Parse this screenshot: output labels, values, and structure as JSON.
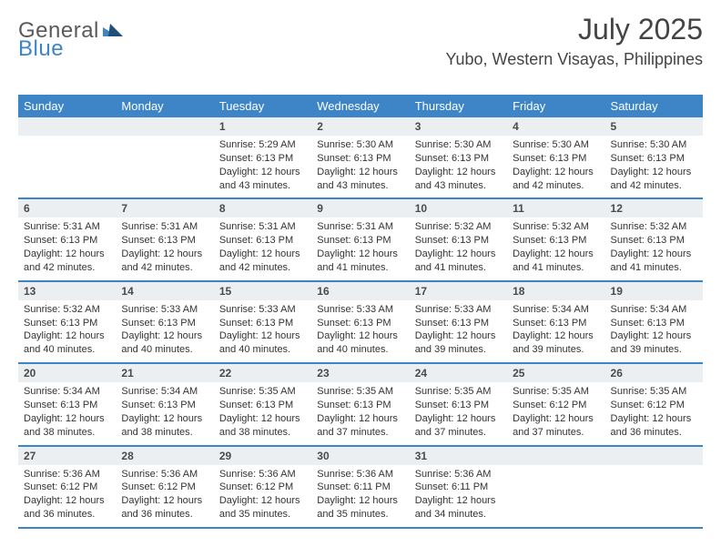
{
  "brand": {
    "part1": "General",
    "part2": "Blue"
  },
  "header": {
    "month_title": "July 2025",
    "location": "Yubo, Western Visayas, Philippines"
  },
  "colors": {
    "accent": "#3d85c6",
    "dow_text": "#ffffff",
    "daynum_bg": "#eceff1",
    "text": "#333333",
    "background": "#ffffff"
  },
  "calendar": {
    "days_of_week": [
      "Sunday",
      "Monday",
      "Tuesday",
      "Wednesday",
      "Thursday",
      "Friday",
      "Saturday"
    ],
    "weeks": [
      [
        null,
        null,
        {
          "n": "1",
          "sunrise": "Sunrise: 5:29 AM",
          "sunset": "Sunset: 6:13 PM",
          "day1": "Daylight: 12 hours",
          "day2": "and 43 minutes."
        },
        {
          "n": "2",
          "sunrise": "Sunrise: 5:30 AM",
          "sunset": "Sunset: 6:13 PM",
          "day1": "Daylight: 12 hours",
          "day2": "and 43 minutes."
        },
        {
          "n": "3",
          "sunrise": "Sunrise: 5:30 AM",
          "sunset": "Sunset: 6:13 PM",
          "day1": "Daylight: 12 hours",
          "day2": "and 43 minutes."
        },
        {
          "n": "4",
          "sunrise": "Sunrise: 5:30 AM",
          "sunset": "Sunset: 6:13 PM",
          "day1": "Daylight: 12 hours",
          "day2": "and 42 minutes."
        },
        {
          "n": "5",
          "sunrise": "Sunrise: 5:30 AM",
          "sunset": "Sunset: 6:13 PM",
          "day1": "Daylight: 12 hours",
          "day2": "and 42 minutes."
        }
      ],
      [
        {
          "n": "6",
          "sunrise": "Sunrise: 5:31 AM",
          "sunset": "Sunset: 6:13 PM",
          "day1": "Daylight: 12 hours",
          "day2": "and 42 minutes."
        },
        {
          "n": "7",
          "sunrise": "Sunrise: 5:31 AM",
          "sunset": "Sunset: 6:13 PM",
          "day1": "Daylight: 12 hours",
          "day2": "and 42 minutes."
        },
        {
          "n": "8",
          "sunrise": "Sunrise: 5:31 AM",
          "sunset": "Sunset: 6:13 PM",
          "day1": "Daylight: 12 hours",
          "day2": "and 42 minutes."
        },
        {
          "n": "9",
          "sunrise": "Sunrise: 5:31 AM",
          "sunset": "Sunset: 6:13 PM",
          "day1": "Daylight: 12 hours",
          "day2": "and 41 minutes."
        },
        {
          "n": "10",
          "sunrise": "Sunrise: 5:32 AM",
          "sunset": "Sunset: 6:13 PM",
          "day1": "Daylight: 12 hours",
          "day2": "and 41 minutes."
        },
        {
          "n": "11",
          "sunrise": "Sunrise: 5:32 AM",
          "sunset": "Sunset: 6:13 PM",
          "day1": "Daylight: 12 hours",
          "day2": "and 41 minutes."
        },
        {
          "n": "12",
          "sunrise": "Sunrise: 5:32 AM",
          "sunset": "Sunset: 6:13 PM",
          "day1": "Daylight: 12 hours",
          "day2": "and 41 minutes."
        }
      ],
      [
        {
          "n": "13",
          "sunrise": "Sunrise: 5:32 AM",
          "sunset": "Sunset: 6:13 PM",
          "day1": "Daylight: 12 hours",
          "day2": "and 40 minutes."
        },
        {
          "n": "14",
          "sunrise": "Sunrise: 5:33 AM",
          "sunset": "Sunset: 6:13 PM",
          "day1": "Daylight: 12 hours",
          "day2": "and 40 minutes."
        },
        {
          "n": "15",
          "sunrise": "Sunrise: 5:33 AM",
          "sunset": "Sunset: 6:13 PM",
          "day1": "Daylight: 12 hours",
          "day2": "and 40 minutes."
        },
        {
          "n": "16",
          "sunrise": "Sunrise: 5:33 AM",
          "sunset": "Sunset: 6:13 PM",
          "day1": "Daylight: 12 hours",
          "day2": "and 40 minutes."
        },
        {
          "n": "17",
          "sunrise": "Sunrise: 5:33 AM",
          "sunset": "Sunset: 6:13 PM",
          "day1": "Daylight: 12 hours",
          "day2": "and 39 minutes."
        },
        {
          "n": "18",
          "sunrise": "Sunrise: 5:34 AM",
          "sunset": "Sunset: 6:13 PM",
          "day1": "Daylight: 12 hours",
          "day2": "and 39 minutes."
        },
        {
          "n": "19",
          "sunrise": "Sunrise: 5:34 AM",
          "sunset": "Sunset: 6:13 PM",
          "day1": "Daylight: 12 hours",
          "day2": "and 39 minutes."
        }
      ],
      [
        {
          "n": "20",
          "sunrise": "Sunrise: 5:34 AM",
          "sunset": "Sunset: 6:13 PM",
          "day1": "Daylight: 12 hours",
          "day2": "and 38 minutes."
        },
        {
          "n": "21",
          "sunrise": "Sunrise: 5:34 AM",
          "sunset": "Sunset: 6:13 PM",
          "day1": "Daylight: 12 hours",
          "day2": "and 38 minutes."
        },
        {
          "n": "22",
          "sunrise": "Sunrise: 5:35 AM",
          "sunset": "Sunset: 6:13 PM",
          "day1": "Daylight: 12 hours",
          "day2": "and 38 minutes."
        },
        {
          "n": "23",
          "sunrise": "Sunrise: 5:35 AM",
          "sunset": "Sunset: 6:13 PM",
          "day1": "Daylight: 12 hours",
          "day2": "and 37 minutes."
        },
        {
          "n": "24",
          "sunrise": "Sunrise: 5:35 AM",
          "sunset": "Sunset: 6:13 PM",
          "day1": "Daylight: 12 hours",
          "day2": "and 37 minutes."
        },
        {
          "n": "25",
          "sunrise": "Sunrise: 5:35 AM",
          "sunset": "Sunset: 6:12 PM",
          "day1": "Daylight: 12 hours",
          "day2": "and 37 minutes."
        },
        {
          "n": "26",
          "sunrise": "Sunrise: 5:35 AM",
          "sunset": "Sunset: 6:12 PM",
          "day1": "Daylight: 12 hours",
          "day2": "and 36 minutes."
        }
      ],
      [
        {
          "n": "27",
          "sunrise": "Sunrise: 5:36 AM",
          "sunset": "Sunset: 6:12 PM",
          "day1": "Daylight: 12 hours",
          "day2": "and 36 minutes."
        },
        {
          "n": "28",
          "sunrise": "Sunrise: 5:36 AM",
          "sunset": "Sunset: 6:12 PM",
          "day1": "Daylight: 12 hours",
          "day2": "and 36 minutes."
        },
        {
          "n": "29",
          "sunrise": "Sunrise: 5:36 AM",
          "sunset": "Sunset: 6:12 PM",
          "day1": "Daylight: 12 hours",
          "day2": "and 35 minutes."
        },
        {
          "n": "30",
          "sunrise": "Sunrise: 5:36 AM",
          "sunset": "Sunset: 6:11 PM",
          "day1": "Daylight: 12 hours",
          "day2": "and 35 minutes."
        },
        {
          "n": "31",
          "sunrise": "Sunrise: 5:36 AM",
          "sunset": "Sunset: 6:11 PM",
          "day1": "Daylight: 12 hours",
          "day2": "and 34 minutes."
        },
        null,
        null
      ]
    ]
  }
}
